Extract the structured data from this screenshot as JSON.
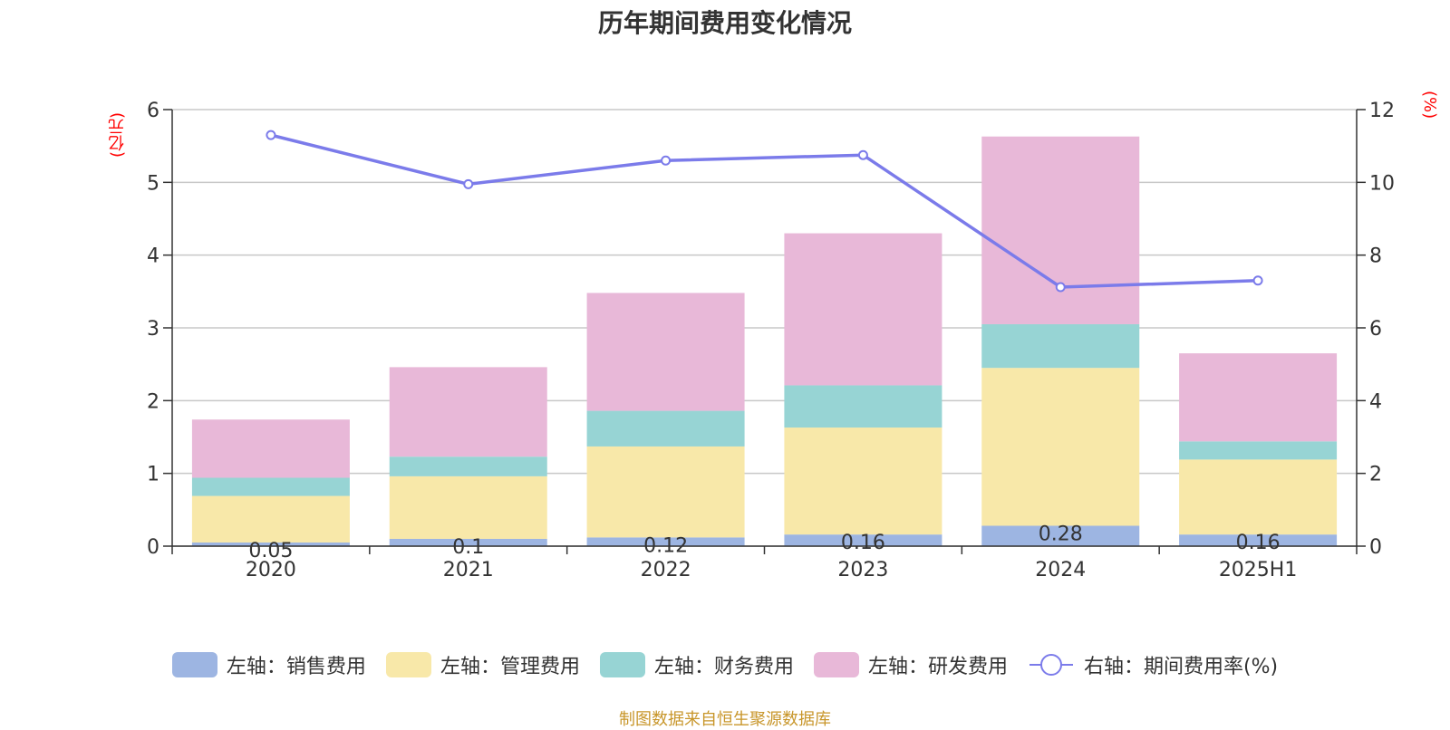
{
  "chart_data": {
    "type": "bar",
    "stacked": true,
    "title": "历年期间费用变化情况",
    "categories": [
      "2020",
      "2021",
      "2022",
      "2023",
      "2024",
      "2025H1"
    ],
    "left_axis_unit": "(亿元)",
    "right_axis_unit": "(%)",
    "ylim_left": [
      0,
      6
    ],
    "yticks_left": [
      "0",
      "1",
      "2",
      "3",
      "4",
      "5",
      "6"
    ],
    "ylim_right": [
      0,
      12
    ],
    "yticks_right": [
      "0",
      "2",
      "4",
      "6",
      "8",
      "10",
      "12"
    ],
    "grid": true,
    "series": [
      {
        "name": "左轴：销售费用",
        "axis": "left",
        "color": "#9db5e2",
        "values": [
          0.05,
          0.1,
          0.12,
          0.16,
          0.28,
          0.16
        ],
        "labels": [
          "0.05",
          "0.1",
          "0.12",
          "0.16",
          "0.28",
          "0.16"
        ]
      },
      {
        "name": "左轴：管理费用",
        "axis": "left",
        "color": "#f8e8a9",
        "values": [
          0.64,
          0.86,
          1.25,
          1.47,
          2.17,
          1.03
        ]
      },
      {
        "name": "左轴：财务费用",
        "axis": "left",
        "color": "#97d4d4",
        "values": [
          0.25,
          0.27,
          0.49,
          0.58,
          0.6,
          0.25
        ]
      },
      {
        "name": "左轴：研发费用",
        "axis": "left",
        "color": "#e8b8d8",
        "values": [
          0.8,
          1.23,
          1.62,
          2.09,
          2.58,
          1.21
        ]
      },
      {
        "name": "右轴：期间费用率(%)",
        "axis": "right",
        "type": "line",
        "color": "#7b7bea",
        "values": [
          11.3,
          9.95,
          10.6,
          10.75,
          7.12,
          7.3
        ]
      }
    ],
    "legend_position": "bottom"
  },
  "source_note": "制图数据来自恒生聚源数据库"
}
